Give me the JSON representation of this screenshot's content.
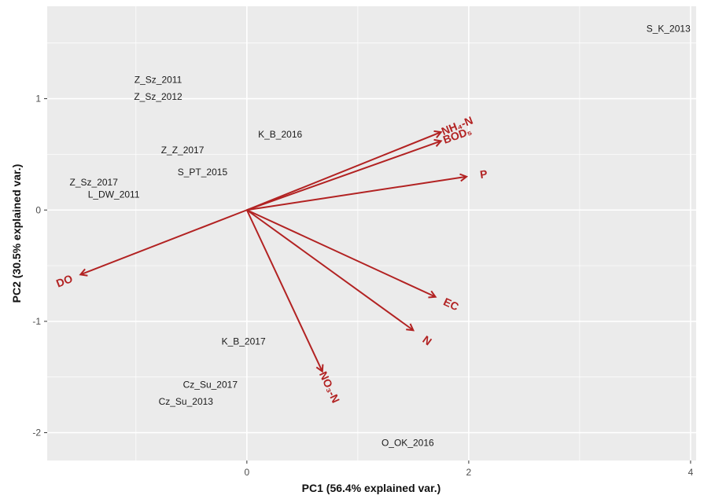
{
  "chart_data": {
    "type": "scatter",
    "subtype": "pca-biplot",
    "title": "",
    "xlabel": "PC1 (56.4% explained var.)",
    "ylabel": "PC2 (30.5% explained var.)",
    "xlim": [
      -1.8,
      4.05
    ],
    "ylim": [
      -2.25,
      1.83
    ],
    "grid": true,
    "legend": "none",
    "x_ticks": [
      0,
      2,
      4
    ],
    "y_ticks": [
      -2,
      -1,
      0,
      1
    ],
    "colors": {
      "panel": "#ebebeb",
      "grid": "#ffffff",
      "loading": "#b22222",
      "points": "#1a1a1a"
    },
    "points": [
      {
        "label": "S_K_2013",
        "x": 3.8,
        "y": 1.63
      },
      {
        "label": "Z_Sz_2011",
        "x": -0.8,
        "y": 1.17
      },
      {
        "label": "Z_Sz_2012",
        "x": -0.8,
        "y": 1.02
      },
      {
        "label": "K_B_2016",
        "x": 0.3,
        "y": 0.68
      },
      {
        "label": "Z_Z_2017",
        "x": -0.58,
        "y": 0.54
      },
      {
        "label": "S_PT_2015",
        "x": -0.4,
        "y": 0.34
      },
      {
        "label": "Z_Sz_2017",
        "x": -1.38,
        "y": 0.25
      },
      {
        "label": "L_DW_2011",
        "x": -1.2,
        "y": 0.14
      },
      {
        "label": "K_B_2017",
        "x": -0.03,
        "y": -1.18
      },
      {
        "label": "Cz_Su_2017",
        "x": -0.33,
        "y": -1.57
      },
      {
        "label": "Cz_Su_2013",
        "x": -0.55,
        "y": -1.72
      },
      {
        "label": "O_OK_2016",
        "x": 1.45,
        "y": -2.09
      }
    ],
    "loadings": [
      {
        "label": "NH₄-N",
        "x": 1.75,
        "y": 0.7
      },
      {
        "label": "BOD₅",
        "x": 1.75,
        "y": 0.62
      },
      {
        "label": "P",
        "x": 1.98,
        "y": 0.3
      },
      {
        "label": "EC",
        "x": 1.7,
        "y": -0.78
      },
      {
        "label": "N",
        "x": 1.5,
        "y": -1.08
      },
      {
        "label": "NO₃-N",
        "x": 0.68,
        "y": -1.45
      },
      {
        "label": "DO",
        "x": -1.5,
        "y": -0.58
      }
    ]
  }
}
